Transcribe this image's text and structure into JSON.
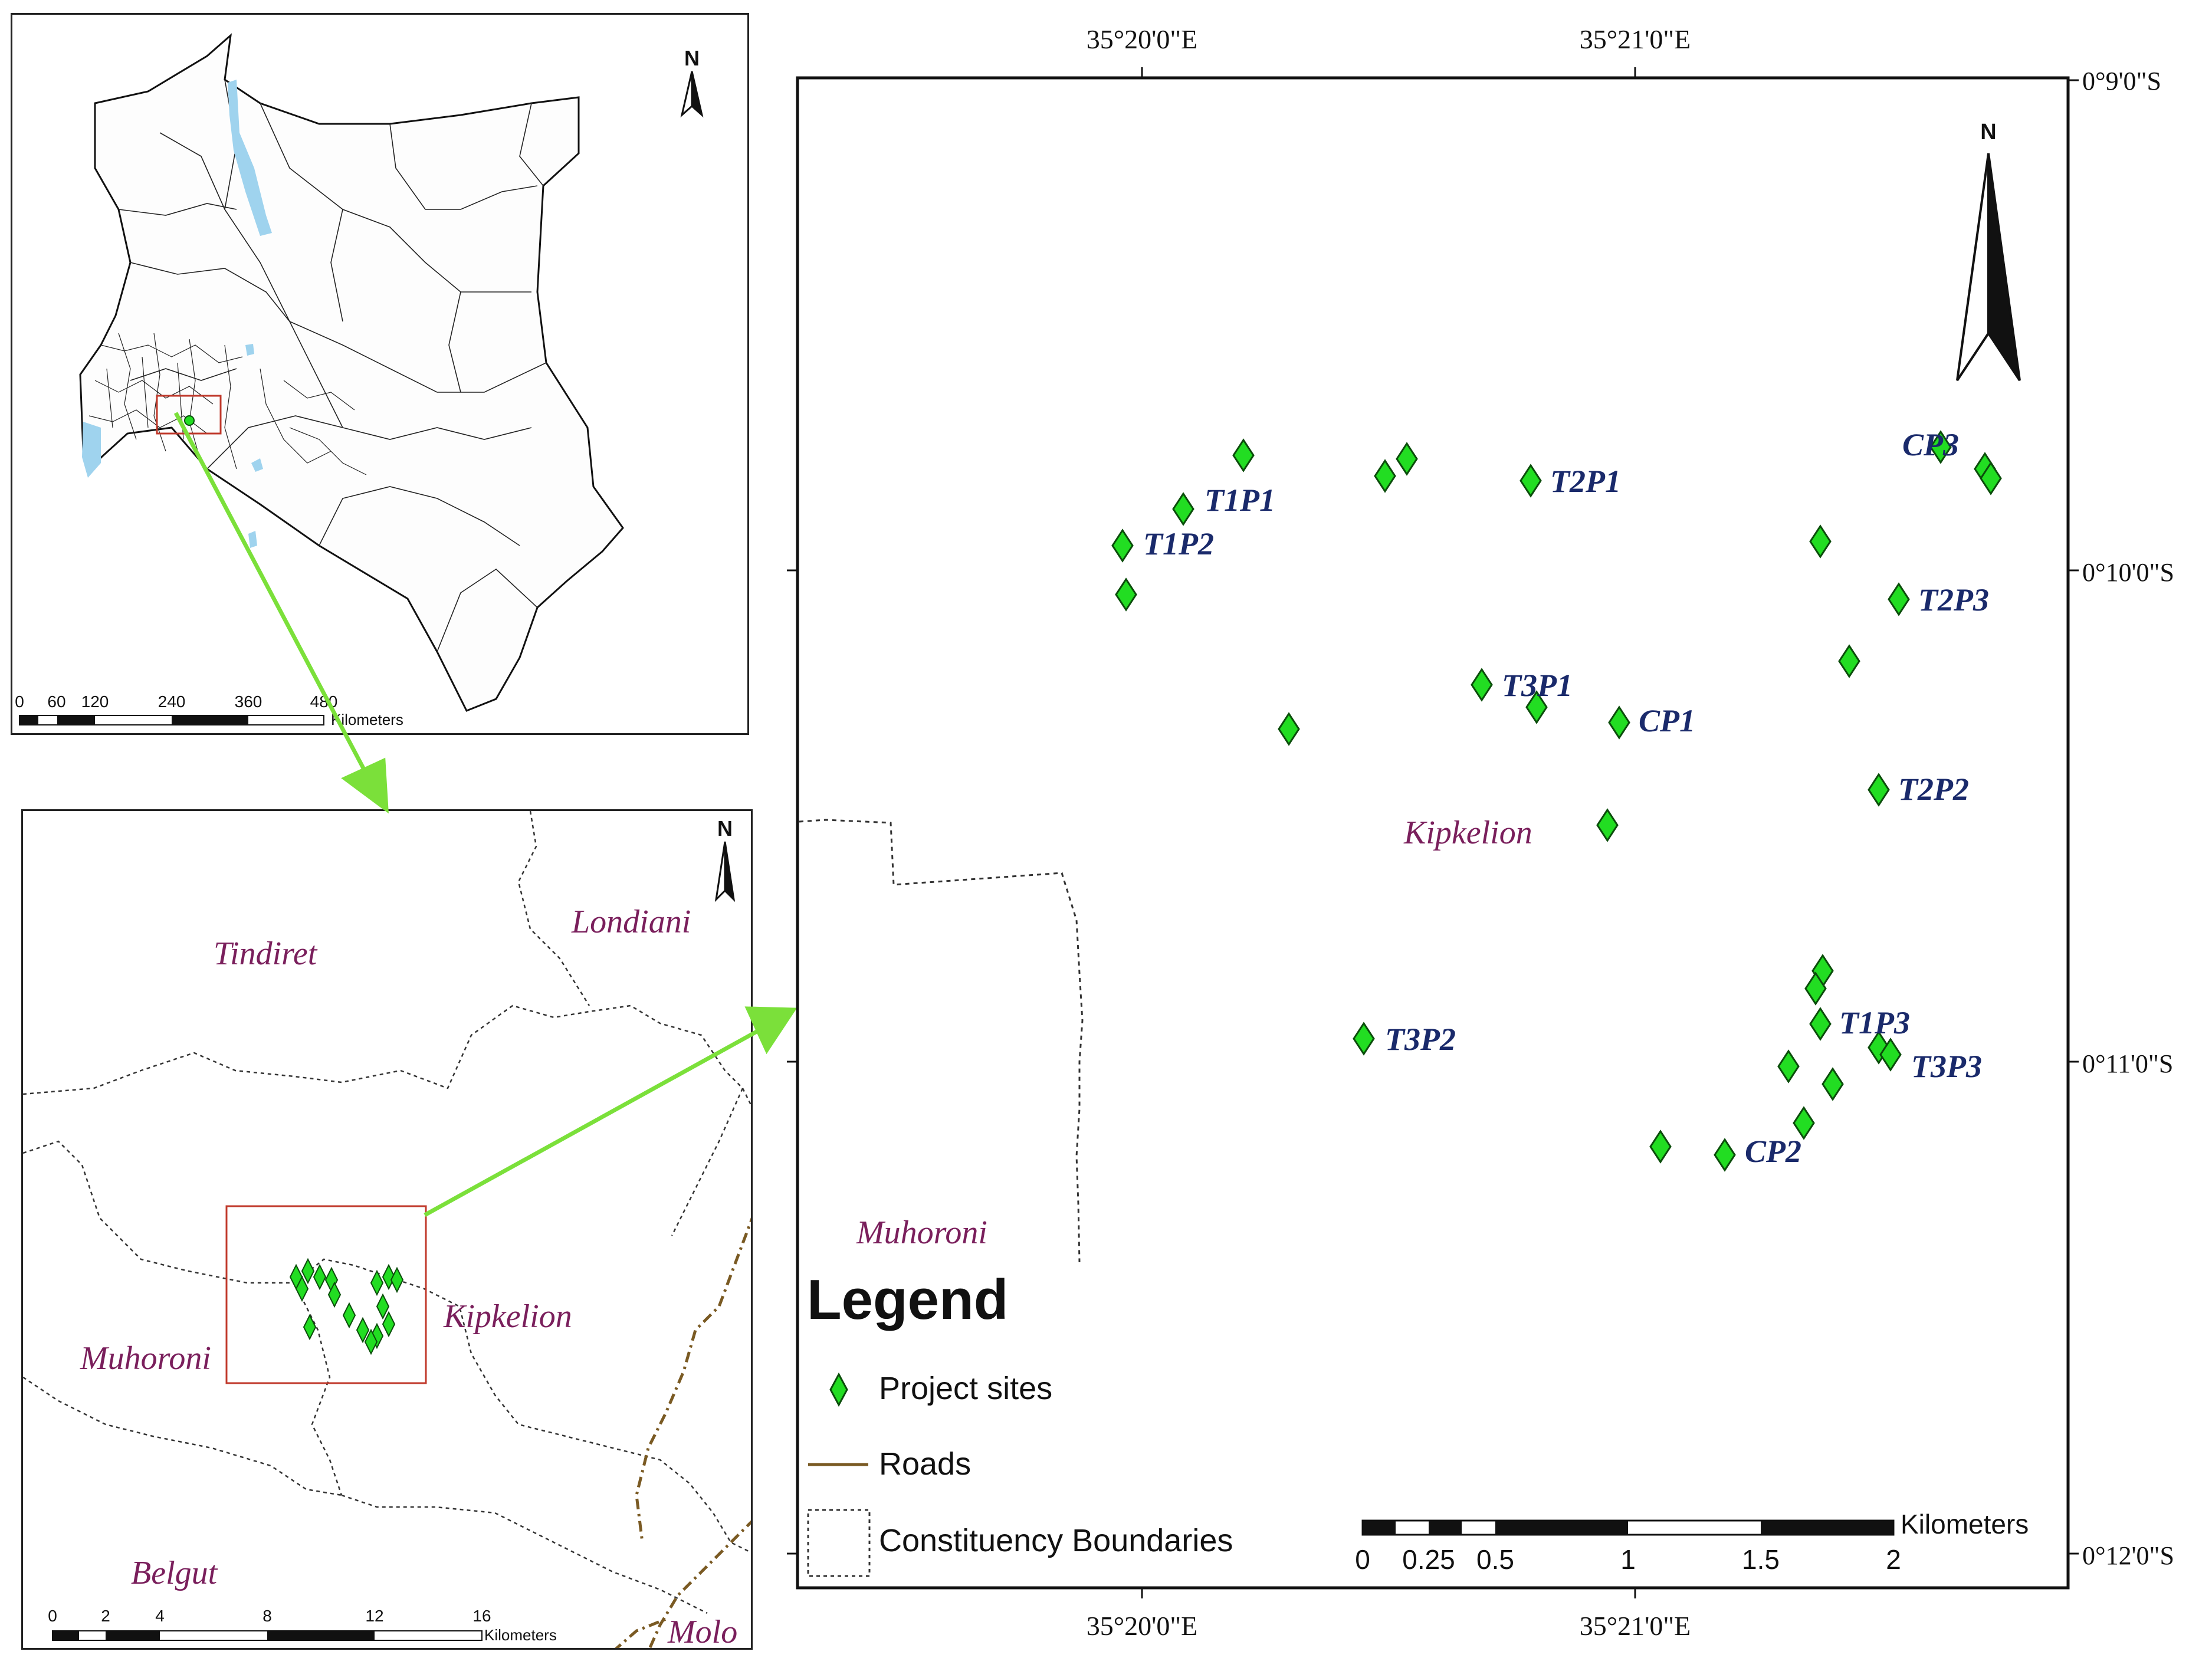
{
  "colors": {
    "site_fill": "#22dd22",
    "site_stroke": "#0b4d0b",
    "arrow": "#7be03a",
    "inset_box": "#c0392b",
    "water": "#9fd3ee",
    "road": "#7a5a23",
    "constituency_label": "#7a1f5c",
    "site_label": "#1a2a6b"
  },
  "overview_map": {
    "north_label": "N",
    "scale_ticks": [
      "0",
      "60",
      "120",
      "240",
      "360",
      "480"
    ],
    "scale_unit": "Kilometers"
  },
  "regional_map": {
    "north_label": "N",
    "constituencies": [
      "Tindiret",
      "Londiani",
      "Kipkelion",
      "Muhoroni",
      "Belgut",
      "Molo"
    ],
    "scale_ticks": [
      "0",
      "2",
      "4",
      "8",
      "12",
      "16"
    ],
    "scale_unit": "Kilometers"
  },
  "detail_map": {
    "north_label": "N",
    "lon_ticks_top": [
      "35°20'0\"E",
      "35°21'0\"E"
    ],
    "lon_ticks_bottom": [
      "35°20'0\"E",
      "35°21'0\"E"
    ],
    "lat_ticks": [
      "0°9'0\"S",
      "0°10'0\"S",
      "0°11'0\"S",
      "0°12'0\"S"
    ],
    "constituency_labels": [
      "Kipkelion",
      "Muhoroni"
    ],
    "site_labels": [
      "T1P1",
      "T1P2",
      "T2P1",
      "CP3",
      "T2P3",
      "T3P1",
      "CP1",
      "T2P2",
      "T1P3",
      "T3P3",
      "T3P2",
      "CP2"
    ],
    "scale_ticks": [
      "0",
      "0.25",
      "0.5",
      "1",
      "1.5",
      "2"
    ],
    "scale_unit": "Kilometers"
  },
  "legend": {
    "title": "Legend",
    "items": [
      {
        "label": "Project sites",
        "icon": "green-diamond-icon"
      },
      {
        "label": "Roads",
        "icon": "brown-line-icon"
      },
      {
        "label": "Constituency Boundaries",
        "icon": "dashed-box-icon"
      }
    ]
  }
}
